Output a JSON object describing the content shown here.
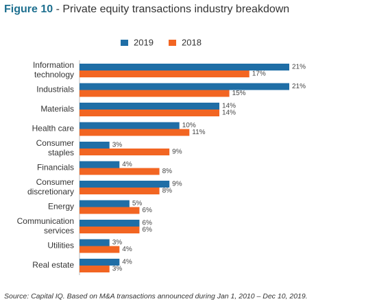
{
  "chart_data": {
    "type": "bar",
    "orientation": "horizontal",
    "figure_label": "Figure 10",
    "title": "- Private equity transactions industry breakdown",
    "source": "Source: Capital IQ. Based on M&A transactions announced during Jan 1, 2010 – Dec 10, 2019.",
    "categories": [
      "Information\ntechnology",
      "Industrials",
      "Materials",
      "Health care",
      "Consumer\nstaples",
      "Financials",
      "Consumer\ndiscretionary",
      "Energy",
      "Communication\nservices",
      "Utilities",
      "Real estate"
    ],
    "series": [
      {
        "name": "2019",
        "color": "#1f6ea6",
        "values": [
          21,
          21,
          14,
          10,
          3,
          4,
          9,
          5,
          6,
          3,
          4
        ],
        "value_labels": [
          "21%",
          "21%",
          "14%",
          "10%",
          "3%",
          "4%",
          "9%",
          "5%",
          "6%",
          "3%",
          "4%"
        ]
      },
      {
        "name": "2018",
        "color": "#f26522",
        "values": [
          17,
          15,
          14,
          11,
          9,
          8,
          8,
          6,
          6,
          4,
          3
        ],
        "value_labels": [
          "17%",
          "15%",
          "14%",
          "11%",
          "9%",
          "8%",
          "8%",
          "6%",
          "6%",
          "4%",
          "3%"
        ]
      }
    ],
    "legend": "top"
  }
}
